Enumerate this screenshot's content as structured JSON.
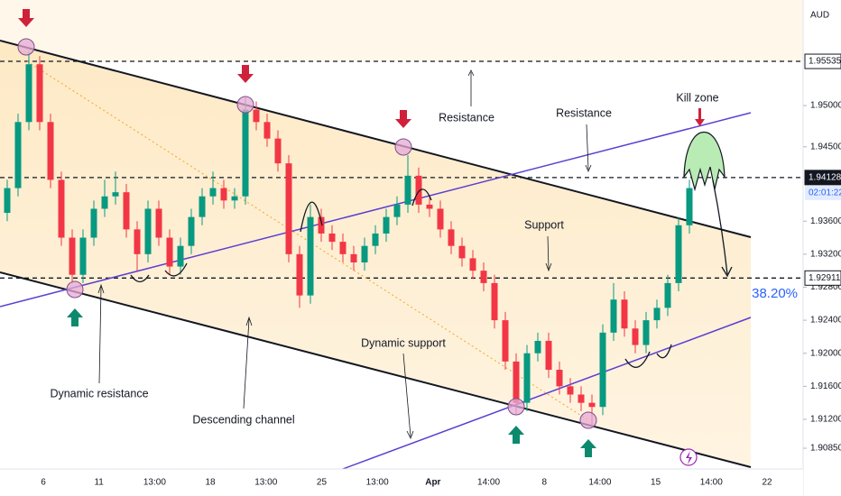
{
  "chart_data": {
    "type": "candlestick",
    "currency": "AUD",
    "countdown": "02:01:22",
    "fib_label": "38.20%",
    "annotations": [
      "Resistance",
      "Resistance",
      "Kill zone",
      "Support",
      "Dynamic support",
      "Dynamic resistance",
      "Descending channel"
    ],
    "xtick_labels": [
      "6",
      "11",
      "13:00",
      "18",
      "13:00",
      "25",
      "13:00",
      "Apr",
      "14:00",
      "8",
      "14:00",
      "15",
      "14:00",
      "22"
    ],
    "ylim": [
      1.90599,
      1.96278
    ],
    "yticks": [
      {
        "value": 1.95,
        "label": "1.95000"
      },
      {
        "value": 1.945,
        "label": "1.94500"
      },
      {
        "value": 1.936,
        "label": "1.93600"
      },
      {
        "value": 1.932,
        "label": "1.93200"
      },
      {
        "value": 1.928,
        "label": "1.92800"
      },
      {
        "value": 1.924,
        "label": "1.92400"
      },
      {
        "value": 1.92,
        "label": "1.92000"
      },
      {
        "value": 1.916,
        "label": "1.91600"
      },
      {
        "value": 1.912,
        "label": "1.91200"
      },
      {
        "value": 1.9085,
        "label": "1.90850"
      }
    ],
    "price_levels": [
      {
        "value": 1.95535,
        "label": "1.95535"
      },
      {
        "value": 1.94128,
        "label": "1.94128"
      },
      {
        "value": 1.92911,
        "label": "1.92911"
      }
    ],
    "up_color": "#089981",
    "down_color": "#f23645",
    "open": [
      1.937,
      1.94,
      1.948,
      1.955,
      1.948,
      1.941,
      1.934,
      1.9295,
      1.934,
      1.9375,
      1.939,
      1.9395,
      1.935,
      1.932,
      1.9375,
      1.934,
      1.9305,
      1.933,
      1.9365,
      1.939,
      1.94,
      1.9385,
      1.939,
      1.9495,
      1.948,
      1.946,
      1.943,
      1.932,
      1.927,
      1.9365,
      1.9345,
      1.9335,
      1.932,
      1.931,
      1.933,
      1.9345,
      1.9365,
      1.938,
      1.9415,
      1.938,
      1.9375,
      1.935,
      1.933,
      1.9315,
      1.93,
      1.9285,
      1.924,
      1.919,
      1.914,
      1.92,
      1.9215,
      1.918,
      1.916,
      1.915,
      1.914,
      1.9135,
      1.9225,
      1.9265,
      1.923,
      1.921,
      1.924,
      1.9255,
      1.9285,
      1.9355
    ],
    "high": [
      1.941,
      1.949,
      1.9565,
      1.956,
      1.949,
      1.942,
      1.935,
      1.935,
      1.9385,
      1.941,
      1.942,
      1.9405,
      1.936,
      1.9385,
      1.9385,
      1.935,
      1.934,
      1.9375,
      1.94,
      1.942,
      1.941,
      1.94,
      1.951,
      1.9505,
      1.949,
      1.947,
      1.944,
      1.933,
      1.938,
      1.9375,
      1.9355,
      1.9345,
      1.933,
      1.934,
      1.9355,
      1.9375,
      1.939,
      1.944,
      1.9425,
      1.939,
      1.9385,
      1.936,
      1.934,
      1.9325,
      1.931,
      1.9295,
      1.925,
      1.92,
      1.921,
      1.9225,
      1.9225,
      1.919,
      1.917,
      1.916,
      1.915,
      1.9235,
      1.9285,
      1.9275,
      1.924,
      1.925,
      1.9265,
      1.9295,
      1.9365,
      1.941
    ],
    "low": [
      1.936,
      1.939,
      1.947,
      1.947,
      1.94,
      1.933,
      1.9285,
      1.9285,
      1.933,
      1.9365,
      1.938,
      1.934,
      1.93,
      1.931,
      1.933,
      1.9295,
      1.9295,
      1.932,
      1.9355,
      1.938,
      1.9375,
      1.9375,
      1.938,
      1.947,
      1.945,
      1.942,
      1.931,
      1.9255,
      1.926,
      1.9335,
      1.9325,
      1.931,
      1.93,
      1.93,
      1.932,
      1.9335,
      1.9355,
      1.937,
      1.937,
      1.9365,
      1.934,
      1.932,
      1.9305,
      1.929,
      1.9275,
      1.923,
      1.918,
      1.9125,
      1.913,
      1.919,
      1.917,
      1.915,
      1.914,
      1.913,
      1.911,
      1.9125,
      1.9215,
      1.922,
      1.92,
      1.92,
      1.923,
      1.9245,
      1.9275,
      1.9345
    ],
    "close": [
      1.94,
      1.948,
      1.955,
      1.948,
      1.941,
      1.934,
      1.9295,
      1.934,
      1.9375,
      1.939,
      1.9395,
      1.935,
      1.932,
      1.9375,
      1.934,
      1.9305,
      1.933,
      1.9365,
      1.939,
      1.94,
      1.9385,
      1.939,
      1.9495,
      1.948,
      1.946,
      1.943,
      1.932,
      1.927,
      1.9365,
      1.9345,
      1.9335,
      1.932,
      1.931,
      1.933,
      1.9345,
      1.9365,
      1.938,
      1.9415,
      1.938,
      1.9375,
      1.935,
      1.933,
      1.9315,
      1.93,
      1.9285,
      1.924,
      1.919,
      1.914,
      1.92,
      1.9215,
      1.918,
      1.916,
      1.915,
      1.914,
      1.9135,
      1.9225,
      1.9265,
      1.923,
      1.921,
      1.924,
      1.9255,
      1.9285,
      1.9355,
      1.94
    ]
  }
}
